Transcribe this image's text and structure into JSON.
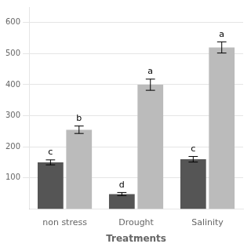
{
  "chart_data": {
    "type": "bar",
    "categories": [
      "non stress",
      "Drought",
      "Salinity"
    ],
    "series": [
      {
        "color": "#555555",
        "values": [
          150,
          48,
          160
        ],
        "errors": [
          8,
          5,
          9
        ],
        "annotations": [
          "c",
          "d",
          "c"
        ]
      },
      {
        "color": "#bbbbbb",
        "values": [
          255,
          400,
          520
        ],
        "errors": [
          12,
          18,
          18
        ],
        "annotations": [
          "b",
          "a",
          "a"
        ]
      }
    ],
    "xlabel": "Treatments",
    "ylim": [
      0,
      650
    ],
    "yticks": [
      100,
      200,
      300,
      400,
      500,
      600
    ],
    "grid": true
  }
}
